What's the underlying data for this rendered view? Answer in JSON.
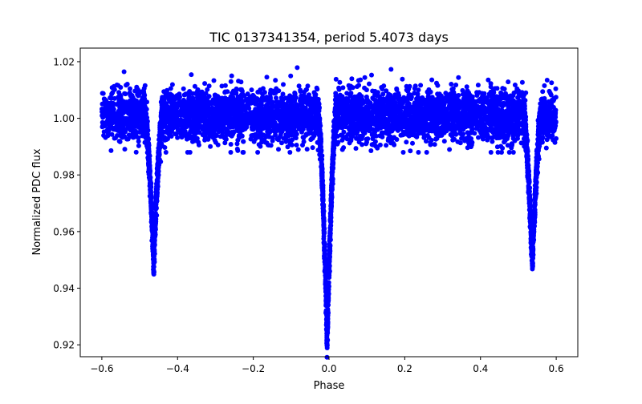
{
  "chart_data": {
    "type": "scatter",
    "title": "TIC 0137341354, period 5.4073 days",
    "xlabel": "Phase",
    "ylabel": "Normalized PDC flux",
    "xlim": [
      -0.657,
      0.657
    ],
    "ylim": [
      0.9158,
      1.0248
    ],
    "xticks": [
      -0.6,
      -0.4,
      -0.2,
      0.0,
      0.2,
      0.4,
      0.6
    ],
    "xtick_labels": [
      "−0.6",
      "−0.4",
      "−0.2",
      "0.0",
      "0.2",
      "0.4",
      "0.6"
    ],
    "yticks": [
      0.92,
      0.94,
      0.96,
      0.98,
      1.0,
      1.02
    ],
    "ytick_labels": [
      "0.92",
      "0.94",
      "0.96",
      "0.98",
      "1.00",
      "1.02"
    ],
    "grid": false,
    "marker_color": "#0000ff",
    "phase_range": [
      -0.6,
      0.6
    ],
    "baseline_flux": 1.001,
    "noise_sigma": 0.0045,
    "eclipses": [
      {
        "name": "primary",
        "phase": -0.005,
        "min_flux": 0.921,
        "half_width": 0.024
      },
      {
        "name": "secondary",
        "phase": -0.463,
        "min_flux": 0.949,
        "half_width": 0.024
      },
      {
        "name": "secondary",
        "phase": 0.537,
        "min_flux": 0.949,
        "half_width": 0.024
      }
    ],
    "n_points": 5000
  }
}
